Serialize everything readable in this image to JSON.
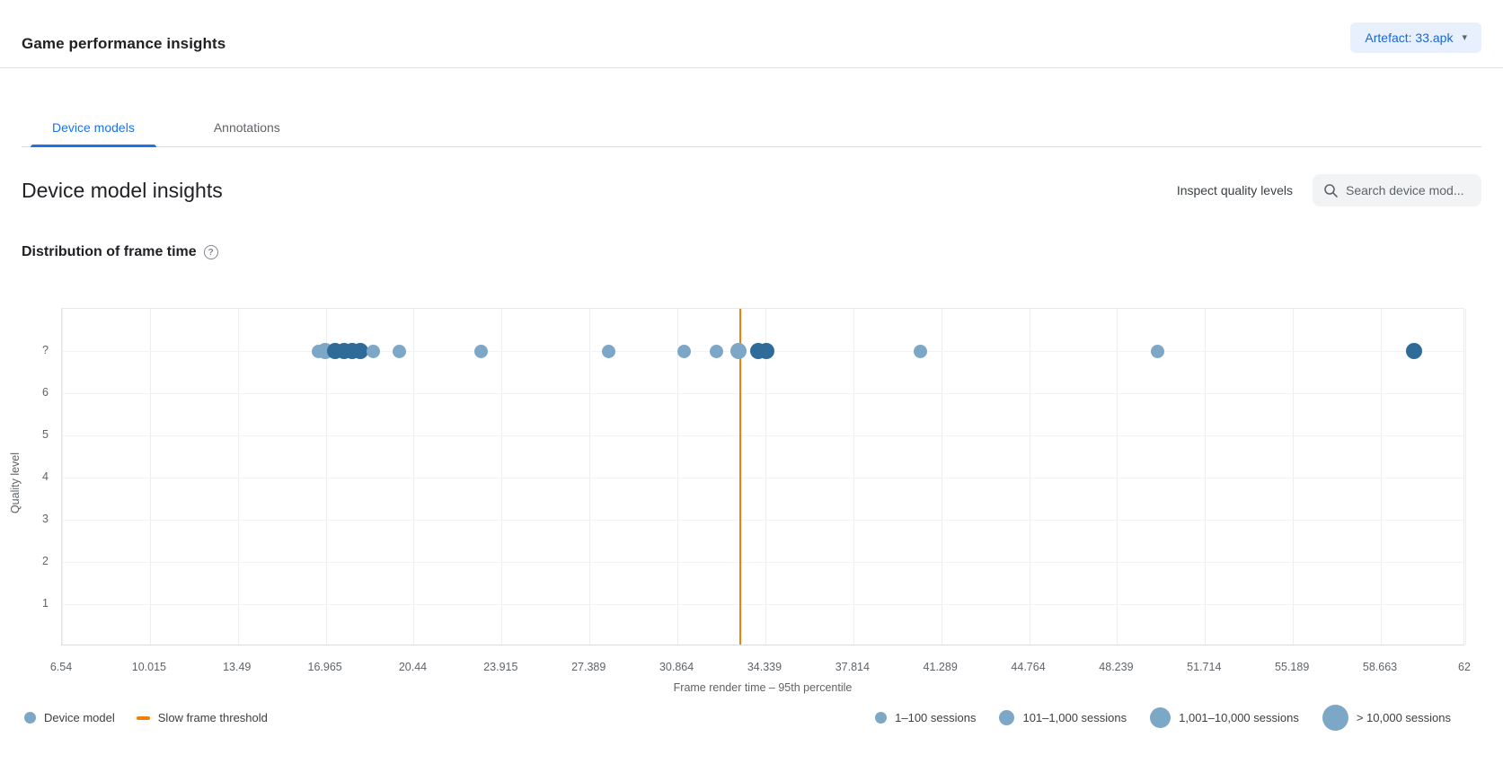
{
  "header": {
    "title": "Game performance insights",
    "artifact_button": {
      "label": "Artefact: 33.apk",
      "caret": "▾"
    }
  },
  "tabs": [
    {
      "label": "Device models",
      "active": true
    },
    {
      "label": "Annotations",
      "active": false
    }
  ],
  "section": {
    "title": "Device model insights",
    "inspect_link": "Inspect quality levels",
    "search_placeholder": "Search device mod..."
  },
  "chart_heading": {
    "title": "Distribution of frame time",
    "help": "?"
  },
  "chart_data": {
    "type": "scatter",
    "title": "Distribution of frame time",
    "xlabel": "Frame render time – 95th percentile",
    "ylabel": "Quality level",
    "xlim": [
      6.54,
      62
    ],
    "x_ticks": [
      6.54,
      10.015,
      13.49,
      16.965,
      20.44,
      23.915,
      27.389,
      30.864,
      34.339,
      37.814,
      41.289,
      44.764,
      48.239,
      51.714,
      55.189,
      58.663,
      62
    ],
    "y_ticks": [
      "?",
      "6",
      "5",
      "4",
      "3",
      "2",
      "1"
    ],
    "grid": true,
    "colors": {
      "light": "#7da7c7",
      "dark": "#2e6b99",
      "threshold": "#ee8208"
    },
    "point_sizes": {
      "1–100 sessions": 15,
      "101–1,000 sessions": 18
    },
    "threshold": {
      "label": "Slow frame threshold",
      "x": 33.33
    },
    "points": [
      {
        "x": 16.66,
        "quality_level": "?",
        "sessions": "1–100 sessions",
        "shade": "light"
      },
      {
        "x": 16.94,
        "quality_level": "?",
        "sessions": "101–1,000 sessions",
        "shade": "light"
      },
      {
        "x": 17.35,
        "quality_level": "?",
        "sessions": "101–1,000 sessions",
        "shade": "dark"
      },
      {
        "x": 17.69,
        "quality_level": "?",
        "sessions": "101–1,000 sessions",
        "shade": "dark"
      },
      {
        "x": 18.01,
        "quality_level": "?",
        "sessions": "101–1,000 sessions",
        "shade": "dark"
      },
      {
        "x": 18.33,
        "quality_level": "?",
        "sessions": "101–1,000 sessions",
        "shade": "dark"
      },
      {
        "x": 18.86,
        "quality_level": "?",
        "sessions": "1–100 sessions",
        "shade": "light"
      },
      {
        "x": 19.89,
        "quality_level": "?",
        "sessions": "1–100 sessions",
        "shade": "light"
      },
      {
        "x": 23.12,
        "quality_level": "?",
        "sessions": "1–100 sessions",
        "shade": "light"
      },
      {
        "x": 28.16,
        "quality_level": "?",
        "sessions": "1–100 sessions",
        "shade": "light"
      },
      {
        "x": 31.14,
        "quality_level": "?",
        "sessions": "1–100 sessions",
        "shade": "light"
      },
      {
        "x": 32.42,
        "quality_level": "?",
        "sessions": "1–100 sessions",
        "shade": "light"
      },
      {
        "x": 33.27,
        "quality_level": "?",
        "sessions": "101–1,000 sessions",
        "shade": "light"
      },
      {
        "x": 34.05,
        "quality_level": "?",
        "sessions": "101–1,000 sessions",
        "shade": "dark"
      },
      {
        "x": 34.37,
        "quality_level": "?",
        "sessions": "101–1,000 sessions",
        "shade": "dark"
      },
      {
        "x": 40.48,
        "quality_level": "?",
        "sessions": "1–100 sessions",
        "shade": "light"
      },
      {
        "x": 49.85,
        "quality_level": "?",
        "sessions": "1–100 sessions",
        "shade": "light"
      },
      {
        "x": 59.97,
        "quality_level": "?",
        "sessions": "101–1,000 sessions",
        "shade": "dark"
      }
    ],
    "legend_position": "bottom"
  },
  "legend": {
    "device_model": "Device model",
    "slow_frame_threshold": "Slow frame threshold",
    "sizes": [
      {
        "label": "1–100 sessions"
      },
      {
        "label": "101–1,000 sessions"
      },
      {
        "label": "1,001–10,000 sessions"
      },
      {
        "label": "> 10,000 sessions"
      }
    ]
  }
}
